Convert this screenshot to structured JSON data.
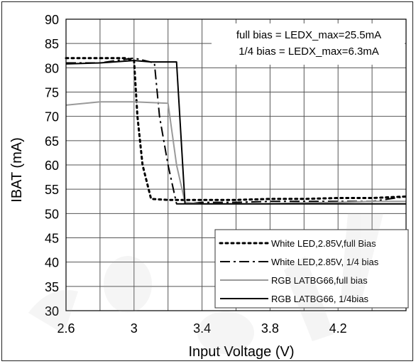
{
  "chart_data": {
    "type": "line",
    "title": "",
    "xlabel": "Input Voltage (V)",
    "ylabel": "IBAT (mA)",
    "xlim": [
      2.6,
      4.6
    ],
    "ylim": [
      30,
      90
    ],
    "xticks": [
      2.6,
      3,
      3.4,
      3.8,
      4.2
    ],
    "xtick_labels": [
      "2.6",
      "3",
      "3.4",
      "3.8",
      "4.2"
    ],
    "yticks": [
      30,
      35,
      40,
      45,
      50,
      55,
      60,
      65,
      70,
      75,
      80,
      85,
      90
    ],
    "ytick_labels": [
      "30",
      "35",
      "40",
      "45",
      "50",
      "55",
      "60",
      "65",
      "70",
      "75",
      "80",
      "85",
      "90"
    ],
    "grid": true,
    "annotations": [
      "full bias = LEDX_max=25.5mA",
      "1/4 bias = LEDX_max=6.3mA"
    ],
    "legend_position": "bottom-right",
    "series": [
      {
        "name": "White LED,2.85V,full Bias",
        "style": "dotted",
        "color": "#000000",
        "x": [
          2.6,
          2.8,
          2.95,
          3.0,
          3.02,
          3.05,
          3.1,
          3.2,
          3.4,
          3.6,
          3.8,
          4.0,
          4.2,
          4.4,
          4.6
        ],
        "y": [
          82,
          82,
          82,
          81.5,
          70,
          60,
          53,
          52.8,
          52.8,
          52.8,
          53,
          53,
          53.2,
          53.2,
          53.5
        ]
      },
      {
        "name": "White LED,2.85V, 1/4 bias",
        "style": "dashdot",
        "color": "#000000",
        "x": [
          2.6,
          2.8,
          3.0,
          3.12,
          3.15,
          3.2,
          3.25,
          3.3,
          3.4,
          3.6,
          3.8,
          4.0,
          4.2,
          4.4,
          4.5,
          4.6
        ],
        "y": [
          81,
          81,
          82,
          81,
          70,
          60,
          52,
          52,
          52.3,
          52.3,
          52.5,
          52.5,
          52.5,
          52.5,
          53,
          53.5
        ]
      },
      {
        "name": "RGB LATBG66,full bias",
        "style": "solid",
        "color": "#9a9a9a",
        "x": [
          2.6,
          2.8,
          3.0,
          3.2,
          3.25,
          3.3,
          3.4,
          3.6,
          3.8,
          4.0,
          4.2,
          4.4,
          4.6
        ],
        "y": [
          72.3,
          73,
          73,
          72.7,
          60,
          52.3,
          52,
          52,
          52,
          52.2,
          52.3,
          52.5,
          52.5
        ]
      },
      {
        "name": "RGB LATBG66, 1/4bias",
        "style": "solid",
        "color": "#000000",
        "x": [
          2.6,
          2.8,
          3.0,
          3.1,
          3.25,
          3.3,
          3.4,
          3.6,
          3.8,
          4.0,
          4.2,
          4.4,
          4.6
        ],
        "y": [
          80.8,
          81,
          81.5,
          81.2,
          81.2,
          52,
          52,
          52,
          52,
          52,
          52,
          52,
          52
        ]
      }
    ]
  }
}
